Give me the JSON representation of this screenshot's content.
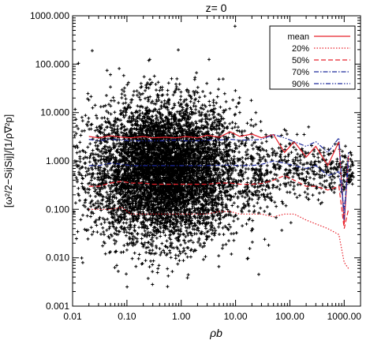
{
  "chart_data": {
    "type": "scatter",
    "title": "z= 0",
    "xlabel": "ρb",
    "ylabel": "[ω²/2−SijSij]/[1/ρ∇²p]",
    "xscale": "log",
    "yscale": "log",
    "xlim": [
      0.01,
      2000
    ],
    "ylim": [
      0.001,
      1000
    ],
    "x_ticks": [
      0.01,
      0.1,
      1,
      10,
      100,
      1000
    ],
    "x_tick_labels": [
      "0.01",
      "0.10",
      "1.00",
      "10.00",
      "100.00",
      "1000.00"
    ],
    "y_ticks": [
      0.001,
      0.01,
      0.1,
      1,
      10,
      100,
      1000
    ],
    "y_tick_labels": [
      "0.001",
      "0.010",
      "0.100",
      "1.000",
      "10.000",
      "100.000",
      "1000.000"
    ],
    "legend_position": "top-right",
    "scatter_cloud": {
      "marker": "+",
      "color": "#000000",
      "center_x": 0.5,
      "center_y": 0.6,
      "spread_log_x": 0.9,
      "spread_log_y": 0.9,
      "tail_x_max": 1500
    },
    "series": [
      {
        "name": "mean",
        "color": "#e8202a",
        "dash": "solid",
        "x": [
          0.02,
          0.03,
          0.05,
          0.08,
          0.12,
          0.2,
          0.3,
          0.5,
          0.8,
          1.2,
          2,
          3,
          5,
          8,
          12,
          20,
          30,
          50,
          80,
          120,
          200,
          300,
          500,
          800,
          1000,
          1200
        ],
        "y": [
          3.2,
          3.0,
          3.3,
          3.1,
          3.0,
          3.2,
          3.0,
          3.1,
          3.0,
          3.2,
          3.0,
          3.4,
          3.1,
          4.0,
          3.2,
          3.6,
          3.0,
          3.5,
          1.5,
          2.5,
          1.2,
          2.0,
          0.8,
          2.5,
          0.05,
          1.3
        ]
      },
      {
        "name": "20%",
        "color": "#e8202a",
        "dash": "dotted",
        "x": [
          0.02,
          0.03,
          0.05,
          0.08,
          0.12,
          0.2,
          0.3,
          0.5,
          0.8,
          1.2,
          2,
          3,
          5,
          8,
          12,
          20,
          30,
          50,
          80,
          120,
          200,
          300,
          500,
          800,
          1000,
          1200
        ],
        "y": [
          0.1,
          0.1,
          0.1,
          0.11,
          0.08,
          0.08,
          0.08,
          0.08,
          0.08,
          0.08,
          0.08,
          0.08,
          0.09,
          0.09,
          0.08,
          0.08,
          0.08,
          0.07,
          0.08,
          0.08,
          0.06,
          0.05,
          0.04,
          0.03,
          0.008,
          0.006
        ]
      },
      {
        "name": "50%",
        "color": "#e8202a",
        "dash": "dashed",
        "x": [
          0.02,
          0.03,
          0.05,
          0.08,
          0.12,
          0.2,
          0.3,
          0.5,
          0.8,
          1.2,
          2,
          3,
          5,
          8,
          12,
          20,
          30,
          50,
          80,
          120,
          200,
          300,
          500,
          800,
          1000,
          1200
        ],
        "y": [
          0.3,
          0.3,
          0.35,
          0.38,
          0.35,
          0.35,
          0.33,
          0.33,
          0.33,
          0.33,
          0.33,
          0.33,
          0.35,
          0.35,
          0.33,
          0.33,
          0.34,
          0.4,
          0.5,
          0.4,
          0.3,
          0.3,
          0.25,
          0.3,
          0.04,
          0.1
        ]
      },
      {
        "name": "70%",
        "color": "#1e2a9c",
        "dash": "dashdot",
        "x": [
          0.02,
          0.03,
          0.05,
          0.08,
          0.12,
          0.2,
          0.3,
          0.5,
          0.8,
          1.2,
          2,
          3,
          5,
          8,
          12,
          20,
          30,
          50,
          80,
          120,
          200,
          300,
          500,
          800,
          1000,
          1200
        ],
        "y": [
          0.8,
          0.8,
          0.9,
          0.85,
          0.8,
          0.8,
          0.8,
          0.8,
          0.8,
          0.8,
          0.8,
          0.8,
          0.82,
          0.82,
          0.8,
          0.8,
          0.85,
          1.0,
          0.9,
          0.8,
          0.7,
          0.8,
          0.5,
          0.6,
          0.1,
          0.8
        ]
      },
      {
        "name": "90%",
        "color": "#1e2a9c",
        "dash": "dashdotdot",
        "x": [
          0.02,
          0.03,
          0.05,
          0.08,
          0.12,
          0.2,
          0.3,
          0.5,
          0.8,
          1.2,
          2,
          3,
          5,
          8,
          12,
          20,
          30,
          50,
          80,
          120,
          200,
          300,
          500,
          800,
          1000,
          1200
        ],
        "y": [
          2.8,
          2.6,
          2.8,
          2.7,
          2.6,
          2.6,
          2.6,
          2.6,
          2.7,
          2.6,
          2.6,
          2.7,
          2.7,
          2.8,
          2.7,
          2.7,
          2.8,
          3.5,
          3.0,
          2.5,
          2.0,
          2.5,
          1.5,
          3.0,
          0.06,
          1.5
        ]
      }
    ]
  }
}
